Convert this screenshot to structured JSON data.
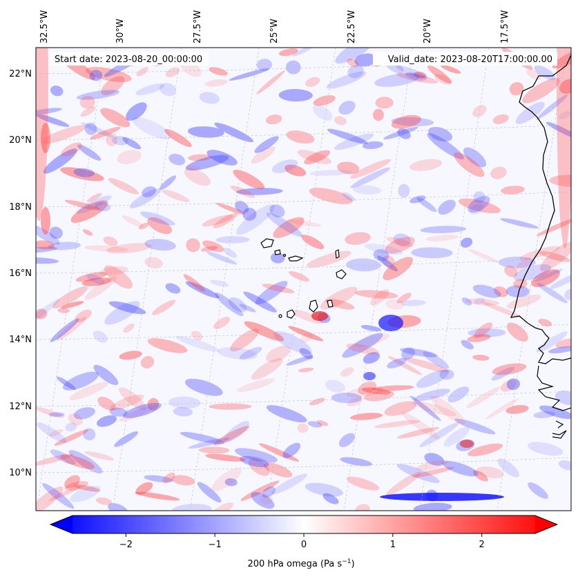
{
  "map": {
    "start_label": "Start date: 2023-08-20_00:00:00",
    "valid_label": "Valid_date: 2023-08-20T17:00:00.00",
    "lon_ticks": [
      "32.5°W",
      "30°W",
      "27.5°W",
      "25°W",
      "22.5°W",
      "20°W",
      "17.5°W"
    ],
    "lat_ticks": [
      "22°N",
      "20°N",
      "18°N",
      "16°N",
      "14°N",
      "12°N",
      "10°N"
    ],
    "extent": {
      "lon_min": -33.0,
      "lon_max": -15.5,
      "lat_min": 8.9,
      "lat_max": 22.8
    },
    "field_colors": {
      "negative": "#0000ff",
      "zero": "#ffffff",
      "positive": "#ff0000"
    }
  },
  "colorbar": {
    "ticks": [
      "−2",
      "−1",
      "0",
      "1",
      "2"
    ],
    "tick_values": [
      -2,
      -1,
      0,
      1,
      2
    ],
    "range": [
      -2.6,
      2.6
    ],
    "label": "200 hPa omega (Pa s",
    "label_sup": "−1",
    "label_end": ")",
    "extend": "both"
  }
}
